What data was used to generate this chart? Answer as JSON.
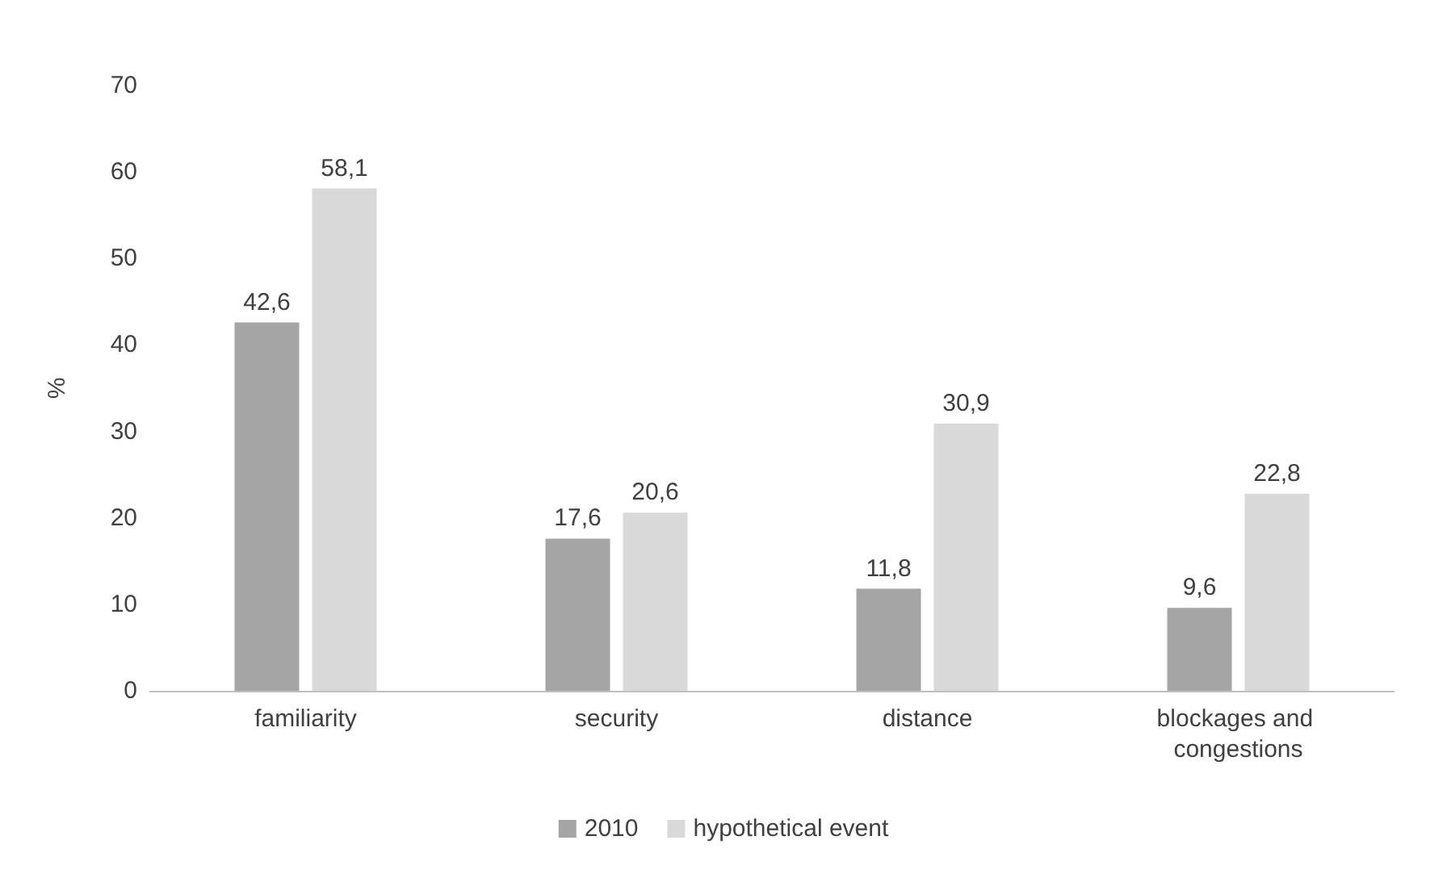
{
  "chart_data": {
    "type": "bar",
    "ylabel": "%",
    "categories": [
      "familiarity",
      "security",
      "distance",
      "blockages and congestions"
    ],
    "series": [
      {
        "name": "2010",
        "color": "#a5a5a5",
        "values": [
          42.6,
          17.6,
          11.8,
          9.6
        ],
        "value_labels": [
          "42,6",
          "17,6",
          "11,8",
          "9,6"
        ]
      },
      {
        "name": "hypothetical event",
        "color": "#d9d9d9",
        "values": [
          58.1,
          20.6,
          30.9,
          22.8
        ],
        "value_labels": [
          "58,1",
          "20,6",
          "30,9",
          "22,8"
        ]
      }
    ],
    "ylim": [
      0,
      70
    ],
    "yticks": [
      0,
      10,
      20,
      30,
      40,
      50,
      60,
      70
    ],
    "grid": false,
    "legend": "bottom"
  }
}
